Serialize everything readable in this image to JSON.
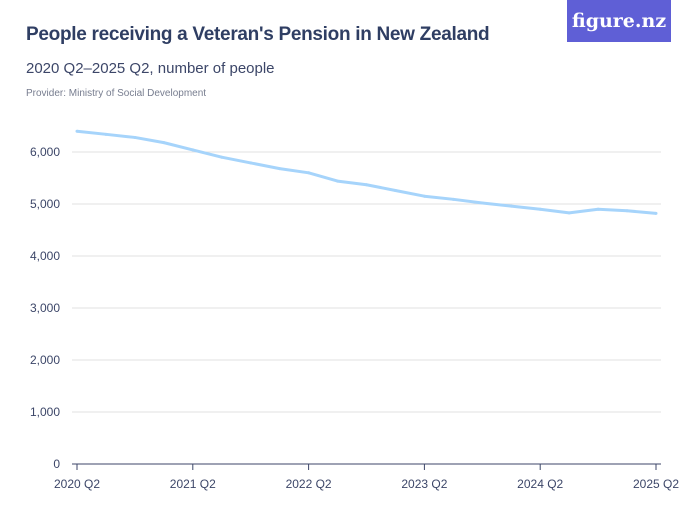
{
  "header": {
    "title": "People receiving a Veteran's Pension in New Zealand",
    "subtitle": "2020 Q2–2025 Q2, number of people",
    "provider": "Provider: Ministry of Social Development",
    "logo": "figure.nz"
  },
  "chart_data": {
    "type": "line",
    "title": "People receiving a Veteran's Pension in New Zealand",
    "subtitle": "2020 Q2–2025 Q2, number of people",
    "x": [
      "2020 Q2",
      "2020 Q3",
      "2020 Q4",
      "2021 Q1",
      "2021 Q2",
      "2021 Q3",
      "2021 Q4",
      "2022 Q1",
      "2022 Q2",
      "2022 Q3",
      "2022 Q4",
      "2023 Q1",
      "2023 Q2",
      "2023 Q3",
      "2023 Q4",
      "2024 Q1",
      "2024 Q2",
      "2024 Q3",
      "2024 Q4",
      "2025 Q1",
      "2025 Q2"
    ],
    "series": [
      {
        "values": [
          6400,
          6340,
          6280,
          6180,
          6040,
          5900,
          5790,
          5680,
          5600,
          5440,
          5370,
          5260,
          5150,
          5090,
          5020,
          4960,
          4900,
          4830,
          4900,
          4870,
          4820
        ],
        "color": "#a6d4fb"
      }
    ],
    "ylim": [
      0,
      6000
    ],
    "yticks": [
      "0",
      "1,000",
      "2,000",
      "3,000",
      "4,000",
      "5,000",
      "6,000"
    ],
    "xticks": [
      "2020 Q2",
      "2021 Q2",
      "2022 Q2",
      "2023 Q2",
      "2024 Q2",
      "2025 Q2"
    ],
    "grid": true
  }
}
